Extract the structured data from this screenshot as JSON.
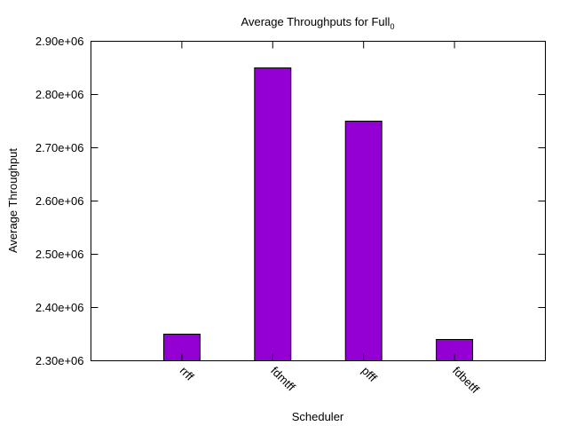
{
  "chart_data": {
    "type": "bar",
    "title": "Average Throughputs for Full",
    "title_subscript": "0",
    "xlabel": "Scheduler",
    "ylabel": "Average Throughput",
    "categories": [
      "rrff",
      "fdmtff",
      "pfff",
      "fdbetff"
    ],
    "values": [
      2350000,
      2850000,
      2750000,
      2340000
    ],
    "ylim": [
      2300000,
      2900000
    ],
    "yticks": [
      2300000,
      2400000,
      2500000,
      2600000,
      2700000,
      2800000,
      2900000
    ],
    "ytick_labels": [
      "2.30e+06",
      "2.40e+06",
      "2.50e+06",
      "2.60e+06",
      "2.70e+06",
      "2.80e+06",
      "2.90e+06"
    ],
    "grid": false,
    "legend": "none",
    "bar_color": "#9400d3",
    "bar_edge_color": "#000000"
  }
}
